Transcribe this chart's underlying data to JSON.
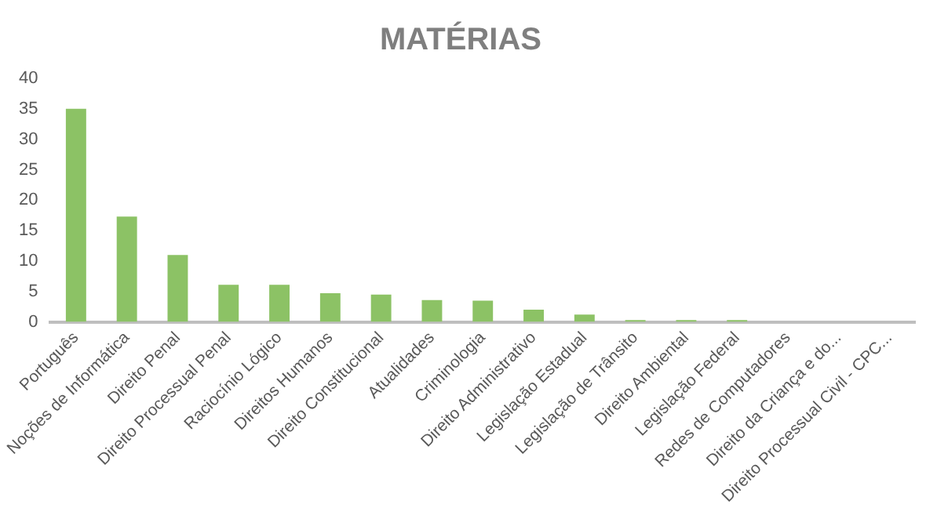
{
  "chart_data": {
    "type": "bar",
    "title": "MATÉRIAS",
    "categories": [
      "Português",
      "Noções de Informática",
      "Direito Penal",
      "Direito Processual Penal",
      "Raciocínio Lógico",
      "Direitos Humanos",
      "Direito Constitucional",
      "Atualidades",
      "Criminologia",
      "Direito Administrativo",
      "Legislação Estadual",
      "Legislação de Trânsito",
      "Direito Ambiental",
      "Legislação Federal",
      "Redes de Computadores",
      "Direito da Criança e do...",
      "Direito Processual Civil - CPC..."
    ],
    "values": [
      35,
      17.3,
      11,
      6.1,
      6.1,
      4.7,
      4.5,
      3.6,
      3.5,
      2,
      1.2,
      0.3,
      0.3,
      0.3,
      0,
      0,
      0
    ],
    "color": "#8cc265",
    "ylim": [
      0,
      40
    ],
    "yticks": [
      0,
      5,
      10,
      15,
      20,
      25,
      30,
      35,
      40
    ],
    "grid": false,
    "legend": false
  }
}
